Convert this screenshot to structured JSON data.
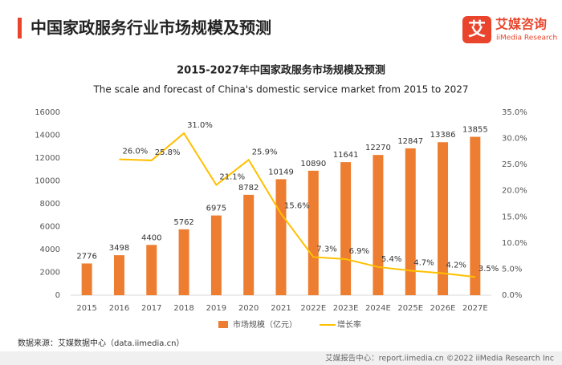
{
  "header": {
    "title": "中国家政服务行业市场规模及预测",
    "logo_mark": "艾",
    "logo_name": "艾媒咨询",
    "logo_sub": "iiMedia Research"
  },
  "chart_data": {
    "type": "bar-line",
    "title": "2015-2027年中国家政服务市场规模及预测",
    "subtitle": "The scale and forecast of China's domestic service market from 2015 to 2027",
    "categories": [
      "2015",
      "2016",
      "2017",
      "2018",
      "2019",
      "2020",
      "2021",
      "2022E",
      "2023E",
      "2024E",
      "2025E",
      "2026E",
      "2027E"
    ],
    "series": [
      {
        "name": "市场规模（亿元）",
        "type": "bar",
        "color": "#ed7d31",
        "axis": "y",
        "values": [
          2776,
          3498,
          4400,
          5762,
          6975,
          8782,
          10149,
          10890,
          11641,
          12270,
          12847,
          13386,
          13855
        ]
      },
      {
        "name": "增长率",
        "type": "line",
        "color": "#ffc000",
        "axis": "y2",
        "values": [
          null,
          26.0,
          25.8,
          31.0,
          21.1,
          25.9,
          15.6,
          7.3,
          6.9,
          5.4,
          4.7,
          4.2,
          3.5
        ],
        "value_labels": [
          null,
          "26.0%",
          "25.8%",
          "31.0%",
          "21.1%",
          "25.9%",
          "15.6%",
          "7.3%",
          "6.9%",
          "5.4%",
          "4.7%",
          "4.2%",
          "3.5%"
        ]
      }
    ],
    "ylim": [
      0,
      16000
    ],
    "yticks": [
      0,
      2000,
      4000,
      6000,
      8000,
      10000,
      12000,
      14000,
      16000
    ],
    "y2lim": [
      0,
      35
    ],
    "y2ticks": [
      {
        "value": 0,
        "label": "0.0%"
      },
      {
        "value": 5,
        "label": "5.0%"
      },
      {
        "value": 10,
        "label": "10.0%"
      },
      {
        "value": 15,
        "label": "15.0%"
      },
      {
        "value": 20,
        "label": "20.0%"
      },
      {
        "value": 25,
        "label": "25.0%"
      },
      {
        "value": 30,
        "label": "30.0%"
      },
      {
        "value": 35,
        "label": "35.0%"
      }
    ],
    "grid": false,
    "legend": "bottom"
  },
  "footer": {
    "source": "数据来源：艾媒数据中心（data.iimedia.cn）",
    "credit": "艾媒报告中心：report.iimedia.cn  ©2022  iiMedia Research  Inc"
  }
}
